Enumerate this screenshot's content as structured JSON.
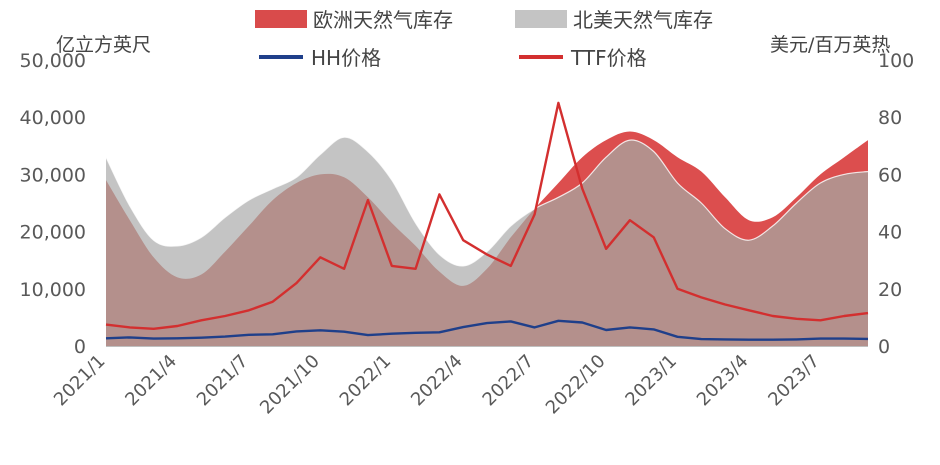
{
  "left_unit": "亿立方英尺",
  "right_unit": "美元/百万英热",
  "colors": {
    "eu_storage": "#d94b4b",
    "eu_storage_fill": "#dc4e4e",
    "us_storage": "#c4c4c4",
    "hh": "#1f3f8a",
    "ttf": "#d32f2f",
    "axis_text": "#595959",
    "overlap": "#b4908c"
  },
  "chart_data": {
    "type": "area",
    "title": "",
    "x_start": "2021/1",
    "x_tick_labels": [
      "2021/1",
      "2021/4",
      "2021/7",
      "2021/10",
      "2022/1",
      "2022/4",
      "2022/7",
      "2022/10",
      "2023/1",
      "2023/4",
      "2023/7"
    ],
    "y_left": {
      "label": "亿立方英尺",
      "min": 0,
      "max": 50000,
      "ticks": [
        0,
        10000,
        20000,
        30000,
        40000,
        50000
      ],
      "tick_labels": [
        "0",
        "10,000",
        "20,000",
        "30,000",
        "40,000",
        "50,000"
      ]
    },
    "y_right": {
      "label": "美元/百万英热",
      "min": 0,
      "max": 100,
      "ticks": [
        0,
        20,
        40,
        60,
        80,
        100
      ],
      "tick_labels": [
        "0",
        "20",
        "40",
        "60",
        "80",
        "100"
      ]
    },
    "grid": false,
    "legend_position": "top",
    "series": [
      {
        "name": "欧洲天然气库存",
        "axis": "left",
        "kind": "area",
        "points": [
          [
            "2021/1",
            29000
          ],
          [
            "2021/2",
            22000
          ],
          [
            "2021/3",
            15500
          ],
          [
            "2021/4",
            12000
          ],
          [
            "2021/5",
            12500
          ],
          [
            "2021/6",
            16500
          ],
          [
            "2021/7",
            21000
          ],
          [
            "2021/8",
            25500
          ],
          [
            "2021/9",
            28500
          ],
          [
            "2021/10",
            30000
          ],
          [
            "2021/11",
            29500
          ],
          [
            "2021/12",
            26000
          ],
          [
            "2022/1",
            21500
          ],
          [
            "2022/2",
            17500
          ],
          [
            "2022/3",
            13000
          ],
          [
            "2022/4",
            10500
          ],
          [
            "2022/5",
            13500
          ],
          [
            "2022/6",
            19000
          ],
          [
            "2022/7",
            24000
          ],
          [
            "2022/8",
            28500
          ],
          [
            "2022/9",
            33000
          ],
          [
            "2022/10",
            36000
          ],
          [
            "2022/11",
            37500
          ],
          [
            "2022/12",
            36000
          ],
          [
            "2023/1",
            33000
          ],
          [
            "2023/2",
            30500
          ],
          [
            "2023/3",
            26000
          ],
          [
            "2023/4",
            22000
          ],
          [
            "2023/5",
            22500
          ],
          [
            "2023/6",
            26000
          ],
          [
            "2023/7",
            30000
          ],
          [
            "2023/8",
            33000
          ],
          [
            "2023/9",
            36000
          ]
        ]
      },
      {
        "name": "北美天然气库存",
        "axis": "left",
        "kind": "area",
        "points": [
          [
            "2021/1",
            33000
          ],
          [
            "2021/2",
            24500
          ],
          [
            "2021/3",
            18500
          ],
          [
            "2021/4",
            17500
          ],
          [
            "2021/5",
            19000
          ],
          [
            "2021/6",
            22500
          ],
          [
            "2021/7",
            25500
          ],
          [
            "2021/8",
            27500
          ],
          [
            "2021/9",
            29500
          ],
          [
            "2021/10",
            33500
          ],
          [
            "2021/11",
            36500
          ],
          [
            "2021/12",
            34000
          ],
          [
            "2022/1",
            29000
          ],
          [
            "2022/2",
            21500
          ],
          [
            "2022/3",
            16000
          ],
          [
            "2022/4",
            14000
          ],
          [
            "2022/5",
            16500
          ],
          [
            "2022/6",
            21000
          ],
          [
            "2022/7",
            24000
          ],
          [
            "2022/8",
            26000
          ],
          [
            "2022/9",
            28500
          ],
          [
            "2022/10",
            33000
          ],
          [
            "2022/11",
            36000
          ],
          [
            "2022/12",
            34000
          ],
          [
            "2023/1",
            28500
          ],
          [
            "2023/2",
            25000
          ],
          [
            "2023/3",
            20500
          ],
          [
            "2023/4",
            18500
          ],
          [
            "2023/5",
            21000
          ],
          [
            "2023/6",
            25000
          ],
          [
            "2023/7",
            28500
          ],
          [
            "2023/8",
            30000
          ],
          [
            "2023/9",
            30500
          ]
        ]
      },
      {
        "name": "HH价格",
        "axis": "right",
        "kind": "line",
        "points": [
          [
            "2021/1",
            2.7
          ],
          [
            "2021/2",
            3.0
          ],
          [
            "2021/3",
            2.6
          ],
          [
            "2021/4",
            2.7
          ],
          [
            "2021/5",
            2.9
          ],
          [
            "2021/6",
            3.3
          ],
          [
            "2021/7",
            3.9
          ],
          [
            "2021/8",
            4.1
          ],
          [
            "2021/9",
            5.1
          ],
          [
            "2021/10",
            5.5
          ],
          [
            "2021/11",
            5.0
          ],
          [
            "2021/12",
            3.8
          ],
          [
            "2022/1",
            4.3
          ],
          [
            "2022/2",
            4.6
          ],
          [
            "2022/3",
            4.8
          ],
          [
            "2022/4",
            6.6
          ],
          [
            "2022/5",
            8.0
          ],
          [
            "2022/6",
            8.6
          ],
          [
            "2022/7",
            6.5
          ],
          [
            "2022/8",
            8.8
          ],
          [
            "2022/9",
            8.2
          ],
          [
            "2022/10",
            5.6
          ],
          [
            "2022/11",
            6.5
          ],
          [
            "2022/12",
            5.8
          ],
          [
            "2023/1",
            3.2
          ],
          [
            "2023/2",
            2.4
          ],
          [
            "2023/3",
            2.3
          ],
          [
            "2023/4",
            2.2
          ],
          [
            "2023/5",
            2.2
          ],
          [
            "2023/6",
            2.3
          ],
          [
            "2023/7",
            2.6
          ],
          [
            "2023/8",
            2.6
          ],
          [
            "2023/9",
            2.5
          ]
        ]
      },
      {
        "name": "TTF价格",
        "axis": "right",
        "kind": "line",
        "points": [
          [
            "2021/1",
            7.5
          ],
          [
            "2021/2",
            6.5
          ],
          [
            "2021/3",
            6.0
          ],
          [
            "2021/4",
            7.0
          ],
          [
            "2021/5",
            9.0
          ],
          [
            "2021/6",
            10.5
          ],
          [
            "2021/7",
            12.5
          ],
          [
            "2021/8",
            15.5
          ],
          [
            "2021/9",
            22.0
          ],
          [
            "2021/10",
            31.0
          ],
          [
            "2021/11",
            27.0
          ],
          [
            "2021/12",
            51.0
          ],
          [
            "2022/1",
            28.0
          ],
          [
            "2022/2",
            27.0
          ],
          [
            "2022/3",
            53.0
          ],
          [
            "2022/4",
            37.0
          ],
          [
            "2022/5",
            32.0
          ],
          [
            "2022/6",
            28.0
          ],
          [
            "2022/7",
            46.0
          ],
          [
            "2022/8",
            85.0
          ],
          [
            "2022/9",
            55.0
          ],
          [
            "2022/10",
            34.0
          ],
          [
            "2022/11",
            44.0
          ],
          [
            "2022/12",
            38.0
          ],
          [
            "2023/1",
            20.0
          ],
          [
            "2023/2",
            17.0
          ],
          [
            "2023/3",
            14.5
          ],
          [
            "2023/4",
            12.5
          ],
          [
            "2023/5",
            10.5
          ],
          [
            "2023/6",
            9.5
          ],
          [
            "2023/7",
            9.0
          ],
          [
            "2023/8",
            10.5
          ],
          [
            "2023/9",
            11.5
          ]
        ]
      }
    ]
  }
}
